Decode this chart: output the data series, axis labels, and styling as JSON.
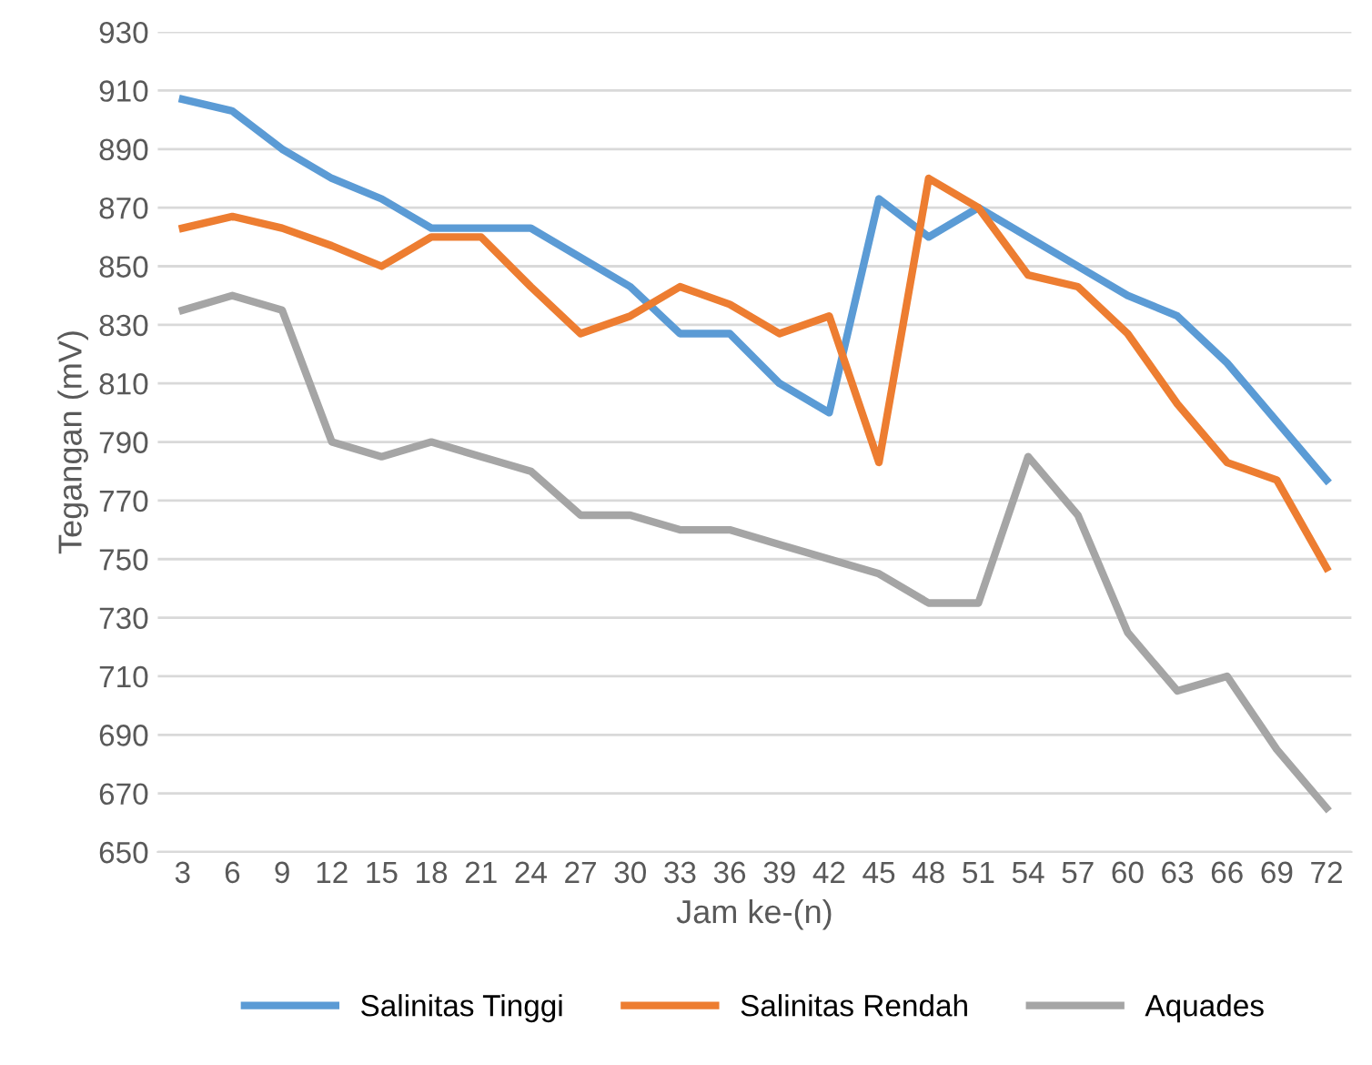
{
  "chart_data": {
    "type": "line",
    "xlabel": "Jam ke-(n)",
    "ylabel": "Tegangan (mV)",
    "categories": [
      "3",
      "6",
      "9",
      "12",
      "15",
      "18",
      "21",
      "24",
      "27",
      "30",
      "33",
      "36",
      "39",
      "42",
      "45",
      "48",
      "51",
      "54",
      "57",
      "60",
      "63",
      "66",
      "69",
      "72"
    ],
    "series": [
      {
        "name": "Salinitas Tinggi",
        "color": "#5b9bd5",
        "values": [
          907,
          903,
          890,
          880,
          873,
          863,
          863,
          863,
          853,
          843,
          827,
          827,
          810,
          800,
          873,
          860,
          870,
          860,
          850,
          840,
          833,
          817,
          797,
          777
        ]
      },
      {
        "name": "Salinitas Rendah",
        "color": "#ed7d31",
        "values": [
          863,
          867,
          863,
          857,
          850,
          860,
          860,
          843,
          827,
          833,
          843,
          837,
          827,
          833,
          783,
          880,
          870,
          847,
          843,
          827,
          803,
          783,
          777,
          747
        ]
      },
      {
        "name": "Aquades",
        "color": "#a5a5a5",
        "values": [
          835,
          840,
          835,
          790,
          785,
          790,
          785,
          780,
          765,
          765,
          760,
          760,
          755,
          750,
          745,
          735,
          735,
          785,
          765,
          725,
          705,
          710,
          685,
          665
        ]
      }
    ],
    "ylim": [
      650,
      930
    ],
    "yticks": [
      650,
      670,
      690,
      710,
      730,
      750,
      770,
      790,
      810,
      830,
      850,
      870,
      890,
      910,
      930
    ],
    "grid": "y",
    "legend": "bottom",
    "marker": "none",
    "line_style": "solid"
  }
}
